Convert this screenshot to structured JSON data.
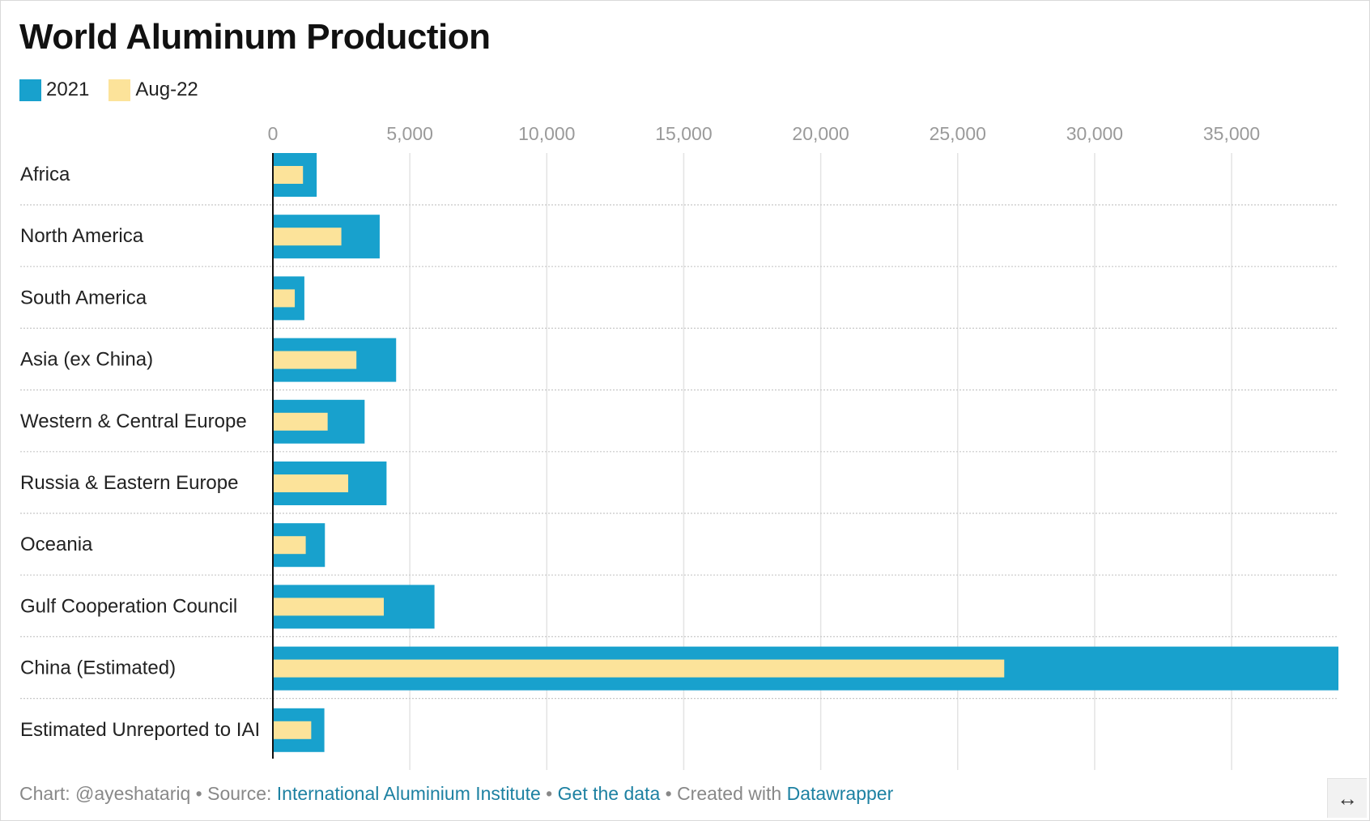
{
  "chart_data": {
    "type": "bar",
    "orientation": "horizontal",
    "title": "World Aluminum Production",
    "categories": [
      "Africa",
      "North America",
      "South America",
      "Asia (ex China)",
      "Western & Central Europe",
      "Russia & Eastern Europe",
      "Oceania",
      "Gulf Cooperation Council",
      "China (Estimated)",
      "Estimated Unreported to IAI"
    ],
    "series": [
      {
        "name": "2021",
        "color": "#18a1cd",
        "values": [
          1600,
          3900,
          1150,
          4500,
          3350,
          4150,
          1900,
          5900,
          38900,
          1880
        ]
      },
      {
        "name": "Aug-22",
        "color": "#fce39a",
        "values": [
          1100,
          2500,
          800,
          3050,
          2000,
          2750,
          1200,
          4050,
          26700,
          1400
        ]
      }
    ],
    "xlim": [
      0,
      38900
    ],
    "ticks": [
      0,
      5000,
      10000,
      15000,
      20000,
      25000,
      30000,
      35000
    ],
    "tick_labels": [
      "0",
      "5,000",
      "10,000",
      "15,000",
      "20,000",
      "25,000",
      "30,000",
      "35,000"
    ],
    "grid": true,
    "legend_position": "top-left"
  },
  "footer": {
    "chart_prefix": "Chart: @ayeshatariq • Source: ",
    "source_link": "International Aluminium Institute",
    "sep1": " • ",
    "data_link": "Get the data",
    "created_prefix": " • Created with ",
    "tool_link": "Datawrapper"
  },
  "resize_icon": "↔"
}
